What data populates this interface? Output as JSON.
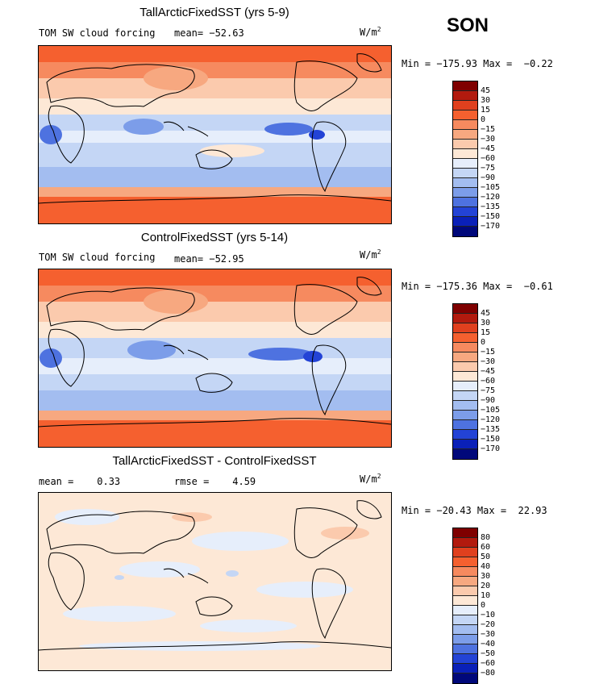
{
  "season": "SON",
  "panels": [
    {
      "title": "TallArcticFixedSST (yrs 5-9)",
      "left_text": "TOM SW cloud forcing",
      "stat1": "mean= −52.63",
      "stat2": "",
      "unit": "W/m",
      "unit_exp": "2",
      "minmax": "Min = −175.93 Max =  −0.22",
      "legend": [
        "45",
        "30",
        "15",
        "0",
        "−15",
        "−30",
        "−45",
        "−60",
        "−75",
        "−90",
        "−105",
        "−120",
        "−135",
        "−150",
        "−170"
      ],
      "colors": [
        "#7f0000",
        "#b21a0e",
        "#e0401e",
        "#f5602f",
        "#f68a5f",
        "#f7a880",
        "#fbcaad",
        "#fde8d6",
        "#e6eefb",
        "#c4d6f5",
        "#a3bdf0",
        "#7c9de9",
        "#4e72e0",
        "#2343d6",
        "#0a20b8",
        "#00087a"
      ]
    },
    {
      "title": "ControlFixedSST (yrs 5-14)",
      "left_text": "TOM SW cloud forcing",
      "stat1": "mean= −52.95",
      "stat2": "",
      "unit": "W/m",
      "unit_exp": "2",
      "minmax": "Min = −175.36 Max =  −0.61",
      "legend": [
        "45",
        "30",
        "15",
        "0",
        "−15",
        "−30",
        "−45",
        "−60",
        "−75",
        "−90",
        "−105",
        "−120",
        "−135",
        "−150",
        "−170"
      ],
      "colors": [
        "#7f0000",
        "#b21a0e",
        "#e0401e",
        "#f5602f",
        "#f68a5f",
        "#f7a880",
        "#fbcaad",
        "#fde8d6",
        "#e6eefb",
        "#c4d6f5",
        "#a3bdf0",
        "#7c9de9",
        "#4e72e0",
        "#2343d6",
        "#0a20b8",
        "#00087a"
      ]
    },
    {
      "title": "TallArcticFixedSST - ControlFixedSST",
      "left_text": "mean =    0.33",
      "stat1": "rmse =    4.59",
      "stat2": "",
      "unit": "W/m",
      "unit_exp": "2",
      "minmax": "Min = −20.43 Max =  22.93",
      "legend": [
        "80",
        "60",
        "50",
        "40",
        "30",
        "20",
        "10",
        "0",
        "−10",
        "−20",
        "−30",
        "−40",
        "−50",
        "−60",
        "−80"
      ],
      "colors": [
        "#7f0000",
        "#b21a0e",
        "#e0401e",
        "#f5602f",
        "#f68a5f",
        "#f7a880",
        "#fbcaad",
        "#fde8d6",
        "#e6eefb",
        "#c4d6f5",
        "#a3bdf0",
        "#7c9de9",
        "#4e72e0",
        "#2343d6",
        "#0a20b8",
        "#00087a"
      ]
    }
  ]
}
